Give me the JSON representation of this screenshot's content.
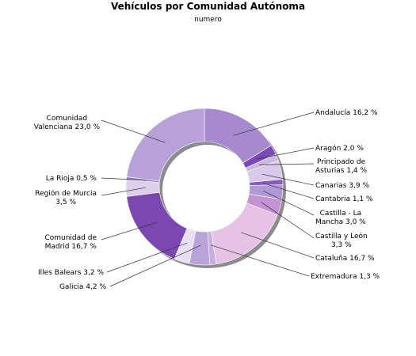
{
  "chart_data": {
    "type": "pie",
    "title": "Vehículos por Comunidad Autónoma",
    "subtitle": "numero",
    "slices": [
      {
        "name": "Andalucía",
        "value": 16.2,
        "label": [
          "Andalucía 16,2 %"
        ],
        "color": "#a689cf"
      },
      {
        "name": "Aragón",
        "value": 2.0,
        "label": [
          "Aragón 2,0 %"
        ],
        "color": "#7a49b3"
      },
      {
        "name": "Principado de Asturias",
        "value": 1.4,
        "label": [
          "Principado de",
          "Asturias 1,4 %"
        ],
        "color": "#c9b9e0"
      },
      {
        "name": "Canarias",
        "value": 3.9,
        "label": [
          "Canarias 3,9 %"
        ],
        "color": "#d9c9eb"
      },
      {
        "name": "Cantabria",
        "value": 1.1,
        "label": [
          "Cantabria 1,1 %"
        ],
        "color": "#8a59be"
      },
      {
        "name": "Castilla - La Mancha",
        "value": 3.0,
        "label": [
          "Castilla - La",
          "Mancha 3,0 %"
        ],
        "color": "#b099d6"
      },
      {
        "name": "Castilla y León",
        "value": 3.3,
        "label": [
          "Castilla y León",
          "3,3 %"
        ],
        "color": "#c592d3"
      },
      {
        "name": "Cataluña",
        "value": 16.7,
        "label": [
          "Cataluña 16,7 %"
        ],
        "color": "#e6c3e6"
      },
      {
        "name": "Extremadura",
        "value": 1.3,
        "label": [
          "Extremadura 1,3 %"
        ],
        "color": "#c6b0dd"
      },
      {
        "name": "Galicia",
        "value": 4.2,
        "label": [
          "Galicia 4,2 %"
        ],
        "color": "#b8a4d9"
      },
      {
        "name": "Illes Balears",
        "value": 3.2,
        "label": [
          "Illes Balears 3,2 %"
        ],
        "color": "#e7e0f3"
      },
      {
        "name": "Comunidad de Madrid",
        "value": 16.7,
        "label": [
          "Comunidad de",
          "Madrid 16,7 %"
        ],
        "color": "#7b48b1"
      },
      {
        "name": "Región de Murcia",
        "value": 3.5,
        "label": [
          "Región de Murcia",
          "3,5 %"
        ],
        "color": "#dcd0ec"
      },
      {
        "name": "La Rioja",
        "value": 0.5,
        "label": [
          "La Rioja 0,5 %"
        ],
        "color": "#9277c4"
      },
      {
        "name": "Comunidad Valenciana",
        "value": 23.0,
        "label": [
          "Comunidad",
          "Valenciana 23,0 %"
        ],
        "color": "#b8a0d8"
      }
    ]
  }
}
